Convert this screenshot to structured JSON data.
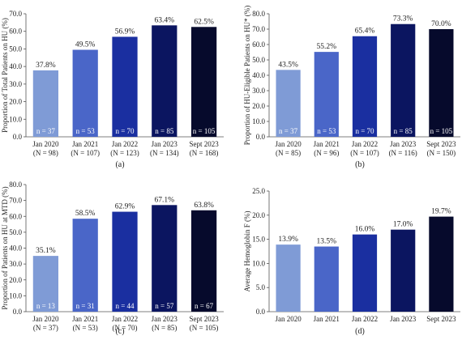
{
  "chart_data": [
    {
      "type": "bar",
      "panel_label": "(a)",
      "ylabel": "Proportion of Total Patients on HU (%)",
      "ylim": [
        0,
        70
      ],
      "yticks": [
        "0.0",
        "10.0",
        "20.0",
        "30.0",
        "40.0",
        "50.0",
        "60.0",
        "70.0"
      ],
      "categories": [
        "Jan 2020",
        "Jan 2021",
        "Jan 2022",
        "Jan 2023",
        "Sept 2023"
      ],
      "category_sub": [
        "(N = 98)",
        "(N = 107)",
        "(N = 123)",
        "(N = 134)",
        "(N = 168)"
      ],
      "values": [
        37.8,
        49.5,
        56.9,
        63.4,
        62.5
      ],
      "value_labels": [
        "37.8%",
        "49.5%",
        "56.9%",
        "63.4%",
        "62.5%"
      ],
      "bar_labels": [
        "n = 37",
        "n = 53",
        "n = 70",
        "n = 85",
        "n = 105"
      ],
      "colors": [
        "#7f9bd6",
        "#4a66c8",
        "#1a2fa0",
        "#0b1560",
        "#060a2c"
      ]
    },
    {
      "type": "bar",
      "panel_label": "(b)",
      "ylabel": "Proportion of HU-Eligible Patients on HU* (%)",
      "ylim": [
        0,
        80
      ],
      "yticks": [
        "0.0",
        "10.0",
        "20.0",
        "30.0",
        "40.0",
        "50.0",
        "60.0",
        "70.0",
        "80.0"
      ],
      "categories": [
        "Jan 2020",
        "Jan 2021",
        "Jan 2022",
        "Jan 2023",
        "Sept 2023"
      ],
      "category_sub": [
        "(N = 85)",
        "(N = 96)",
        "(N = 107)",
        "(N = 116)",
        "(N = 150)"
      ],
      "values": [
        43.5,
        55.2,
        65.4,
        73.3,
        70.0
      ],
      "value_labels": [
        "43.5%",
        "55.2%",
        "65.4%",
        "73.3%",
        "70.0%"
      ],
      "bar_labels": [
        "n = 37",
        "n = 53",
        "n = 70",
        "n = 85",
        "n = 105"
      ],
      "colors": [
        "#7f9bd6",
        "#4a66c8",
        "#1a2fa0",
        "#0b1560",
        "#060a2c"
      ]
    },
    {
      "type": "bar",
      "panel_label": "(c)",
      "ylabel": "Proportion of Patients on HU at MTD (%)",
      "ylim": [
        0,
        80
      ],
      "yticks": [
        "0.0",
        "10.0",
        "20.0",
        "30.0",
        "40.0",
        "50.0",
        "60.0",
        "70.0",
        "80.0"
      ],
      "categories": [
        "Jan 2020",
        "Jan 2021",
        "Jan 2022",
        "Jan 2023",
        "Sept 2023"
      ],
      "category_sub": [
        "(N = 37)",
        "(N = 53)",
        "(N = 70)",
        "(N = 85)",
        "(N = 105)"
      ],
      "values": [
        35.1,
        58.5,
        62.9,
        67.1,
        63.8
      ],
      "value_labels": [
        "35.1%",
        "58.5%",
        "62.9%",
        "67.1%",
        "63.8%"
      ],
      "bar_labels": [
        "n = 13",
        "n = 31",
        "n = 44",
        "n = 57",
        "n = 67"
      ],
      "colors": [
        "#7f9bd6",
        "#4a66c8",
        "#1a2fa0",
        "#0b1560",
        "#060a2c"
      ]
    },
    {
      "type": "bar",
      "panel_label": "(d)",
      "ylabel": "Average Hemoglobin F (%)",
      "ylim": [
        0,
        25
      ],
      "yticks": [
        "0.0",
        "5.0",
        "10.0",
        "15.0",
        "20.0",
        "25.0"
      ],
      "categories": [
        "Jan 2020",
        "Jan 2021",
        "Jan 2022",
        "Jan 2023",
        "Sept 2023"
      ],
      "category_sub": [],
      "values": [
        13.9,
        13.5,
        16.0,
        17.0,
        19.7
      ],
      "value_labels": [
        "13.9%",
        "13.5%",
        "16.0%",
        "17.0%",
        "19.7%"
      ],
      "bar_labels": [],
      "colors": [
        "#7f9bd6",
        "#4a66c8",
        "#1a2fa0",
        "#0b1560",
        "#060a2c"
      ]
    }
  ]
}
